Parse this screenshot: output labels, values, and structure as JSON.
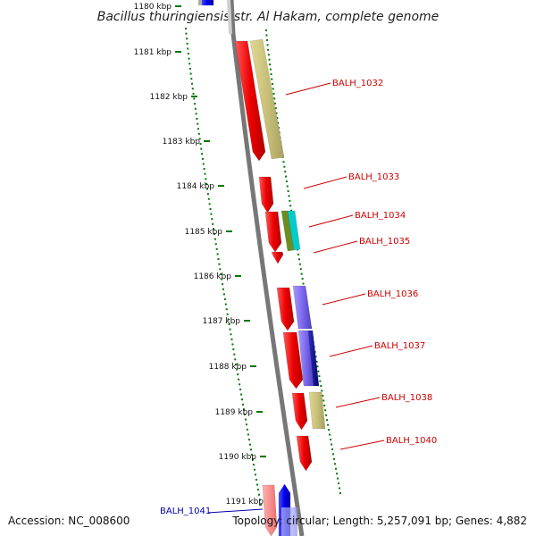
{
  "title": "Bacillus thuringiensis str. Al Hakam, complete genome",
  "footer": {
    "accession": "Accession: NC_008600",
    "summary": "Topology: circular; Length: 5,257,091 bp; Genes: 4,882"
  },
  "ticks": [
    "1180 kbp",
    "1181 kbp",
    "1182 kbp",
    "1183 kbp",
    "1184 kbp",
    "1185 kbp",
    "1186 kbp",
    "1187 kbp",
    "1188 kbp",
    "1189 kbp",
    "1190 kbp",
    "1191 kbp"
  ],
  "gene_labels": [
    {
      "id": "BALH_1032",
      "color": "#cc0000"
    },
    {
      "id": "BALH_1033",
      "color": "#cc0000"
    },
    {
      "id": "BALH_1034",
      "color": "#cc0000"
    },
    {
      "id": "BALH_1035",
      "color": "#cc0000"
    },
    {
      "id": "BALH_1036",
      "color": "#cc0000"
    },
    {
      "id": "BALH_1037",
      "color": "#cc0000"
    },
    {
      "id": "BALH_1038",
      "color": "#cc0000"
    },
    {
      "id": "BALH_1040",
      "color": "#cc0000"
    },
    {
      "id": "BALH_1041",
      "color": "#0000aa"
    }
  ],
  "colors": {
    "gene_forward": "#ff0000",
    "gene_reverse": "#0000ff",
    "backbone": "#888888",
    "gc_dots": "#007700",
    "cog_khaki": "#bdb76b",
    "cog_cyan": "#00cccc",
    "cog_olive": "#6b8e23",
    "cog_violet": "#7b68ee",
    "cog_navy": "#000080"
  }
}
